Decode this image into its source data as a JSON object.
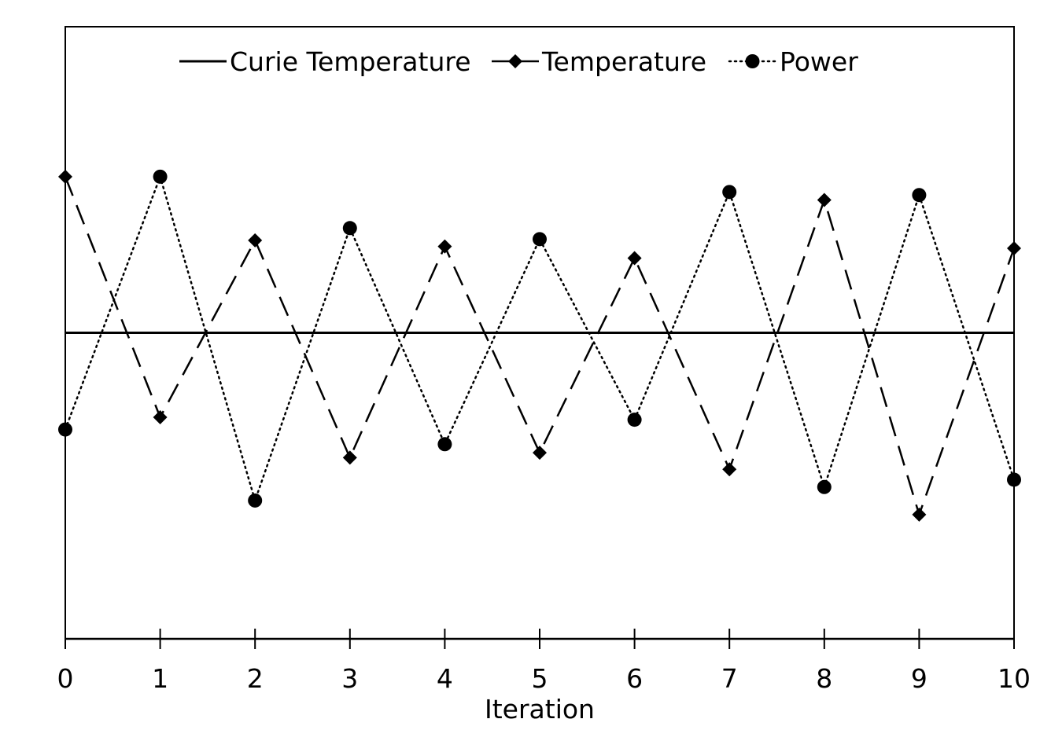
{
  "chart_data": {
    "type": "line",
    "title": "",
    "xlabel": "Iteration",
    "ylabel": "",
    "x": [
      0,
      1,
      2,
      3,
      4,
      5,
      6,
      7,
      8,
      9,
      10
    ],
    "xlim": [
      0,
      10
    ],
    "ylim": [
      0,
      100
    ],
    "y_ticks_shown": false,
    "grid": false,
    "legend_position": "top-center",
    "series": [
      {
        "name": "Curie Temperature",
        "style": "solid",
        "marker": "none",
        "color": "#000000",
        "values": [
          50,
          50,
          50,
          50,
          50,
          50,
          50,
          50,
          50,
          50,
          50
        ]
      },
      {
        "name": "Temperature",
        "style": "dashed",
        "marker": "diamond",
        "color": "#000000",
        "values": [
          75.5,
          36.2,
          65.1,
          29.6,
          64.1,
          30.4,
          62.2,
          27.7,
          71.7,
          20.3,
          63.8
        ]
      },
      {
        "name": "Power",
        "style": "dotted",
        "marker": "circle",
        "color": "#000000",
        "values": [
          34.2,
          75.5,
          22.6,
          67.1,
          31.8,
          65.3,
          35.8,
          73.0,
          24.8,
          72.5,
          26.0
        ]
      }
    ]
  }
}
